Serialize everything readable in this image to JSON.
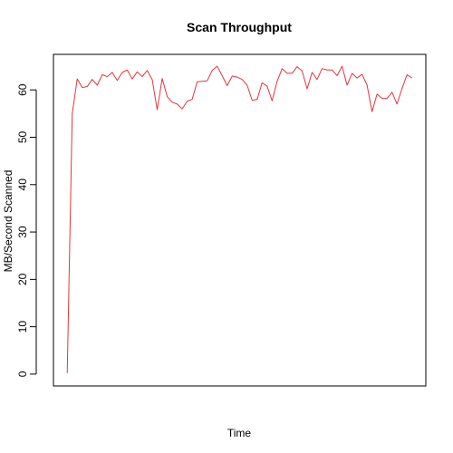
{
  "chart_data": {
    "type": "line",
    "title": "Scan Throughput",
    "xlabel": "Time",
    "ylabel": "MB/Second Scanned",
    "ylim": [
      -2.5,
      67.5
    ],
    "yticks": [
      0,
      10,
      20,
      30,
      40,
      50,
      60
    ],
    "x_tick_labels_shown": false,
    "grid": false,
    "legend": "none",
    "series": [
      {
        "color": "#e8333a",
        "x": [
          1,
          2,
          3,
          4,
          5,
          6,
          7,
          8,
          9,
          10,
          11,
          12,
          13,
          14,
          15,
          16,
          17,
          18,
          19,
          20,
          21,
          22,
          23,
          24,
          25,
          26,
          27,
          28,
          29,
          30,
          31,
          32,
          33,
          34,
          35,
          36,
          37,
          38,
          39,
          40,
          41,
          42,
          43,
          44,
          45,
          46,
          47,
          48,
          49,
          50,
          51,
          52,
          53,
          54,
          55,
          56,
          57,
          58,
          59,
          60,
          61,
          62,
          63,
          64,
          65,
          66,
          67,
          68,
          69,
          70
        ],
        "values": [
          0.2,
          55.0,
          62.3,
          60.5,
          60.7,
          62.2,
          61.0,
          63.2,
          62.8,
          63.7,
          62.0,
          63.7,
          64.2,
          62.3,
          63.8,
          62.8,
          64.1,
          62.2,
          55.8,
          62.4,
          58.6,
          57.4,
          57.0,
          56.0,
          57.6,
          58.0,
          61.7,
          61.8,
          61.9,
          64.1,
          65.0,
          63.0,
          60.9,
          62.9,
          62.7,
          62.2,
          61.0,
          57.8,
          58.0,
          61.5,
          60.8,
          57.7,
          61.8,
          64.5,
          63.5,
          63.5,
          64.9,
          64.0,
          60.2,
          63.7,
          62.2,
          64.5,
          64.2,
          64.2,
          63.0,
          65.0,
          61.0,
          63.5,
          62.5,
          63.3,
          61.0,
          55.4,
          59.1,
          58.2,
          58.2,
          59.5,
          57.0,
          60.3,
          63.2,
          62.5
        ]
      }
    ]
  },
  "colors": {
    "series_line": "#e8333a",
    "axis": "#000000"
  }
}
